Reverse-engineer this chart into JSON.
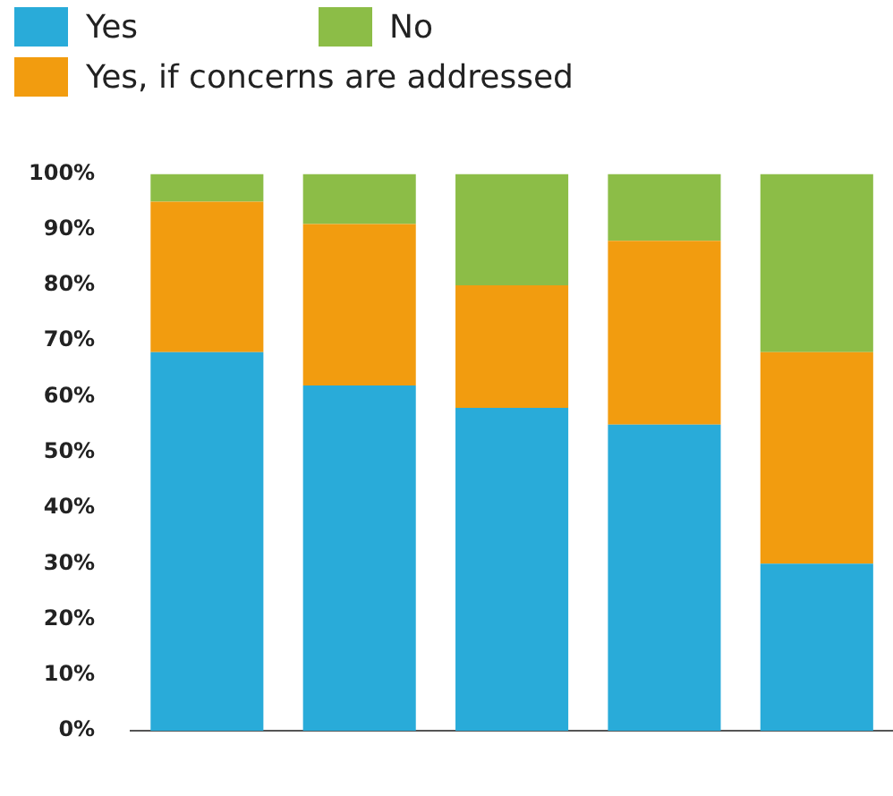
{
  "chart_data": {
    "type": "bar",
    "stacked": true,
    "categories": [
      null,
      null,
      null,
      null,
      null
    ],
    "series": [
      {
        "name": "Yes",
        "color": "#29abd9",
        "values": [
          68,
          62,
          58,
          55,
          30
        ]
      },
      {
        "name": "Yes, if concerns are addressed",
        "color": "#f29c0f",
        "values": [
          27,
          29,
          22,
          33,
          38
        ]
      },
      {
        "name": "No",
        "color": "#8cbd47",
        "values": [
          5,
          9,
          20,
          12,
          32
        ]
      }
    ],
    "ylim": [
      0,
      100
    ],
    "yticks": [
      {
        "value": 0,
        "label": "0%"
      },
      {
        "value": 10,
        "label": "10%"
      },
      {
        "value": 20,
        "label": "20%"
      },
      {
        "value": 30,
        "label": "30%"
      },
      {
        "value": 40,
        "label": "40%"
      },
      {
        "value": 50,
        "label": "50%"
      },
      {
        "value": 60,
        "label": "60%"
      },
      {
        "value": 70,
        "label": "70%"
      },
      {
        "value": 80,
        "label": "80%"
      },
      {
        "value": 90,
        "label": "90%"
      },
      {
        "value": 100,
        "label": "100%"
      }
    ],
    "grid": false,
    "legend": "top left"
  }
}
